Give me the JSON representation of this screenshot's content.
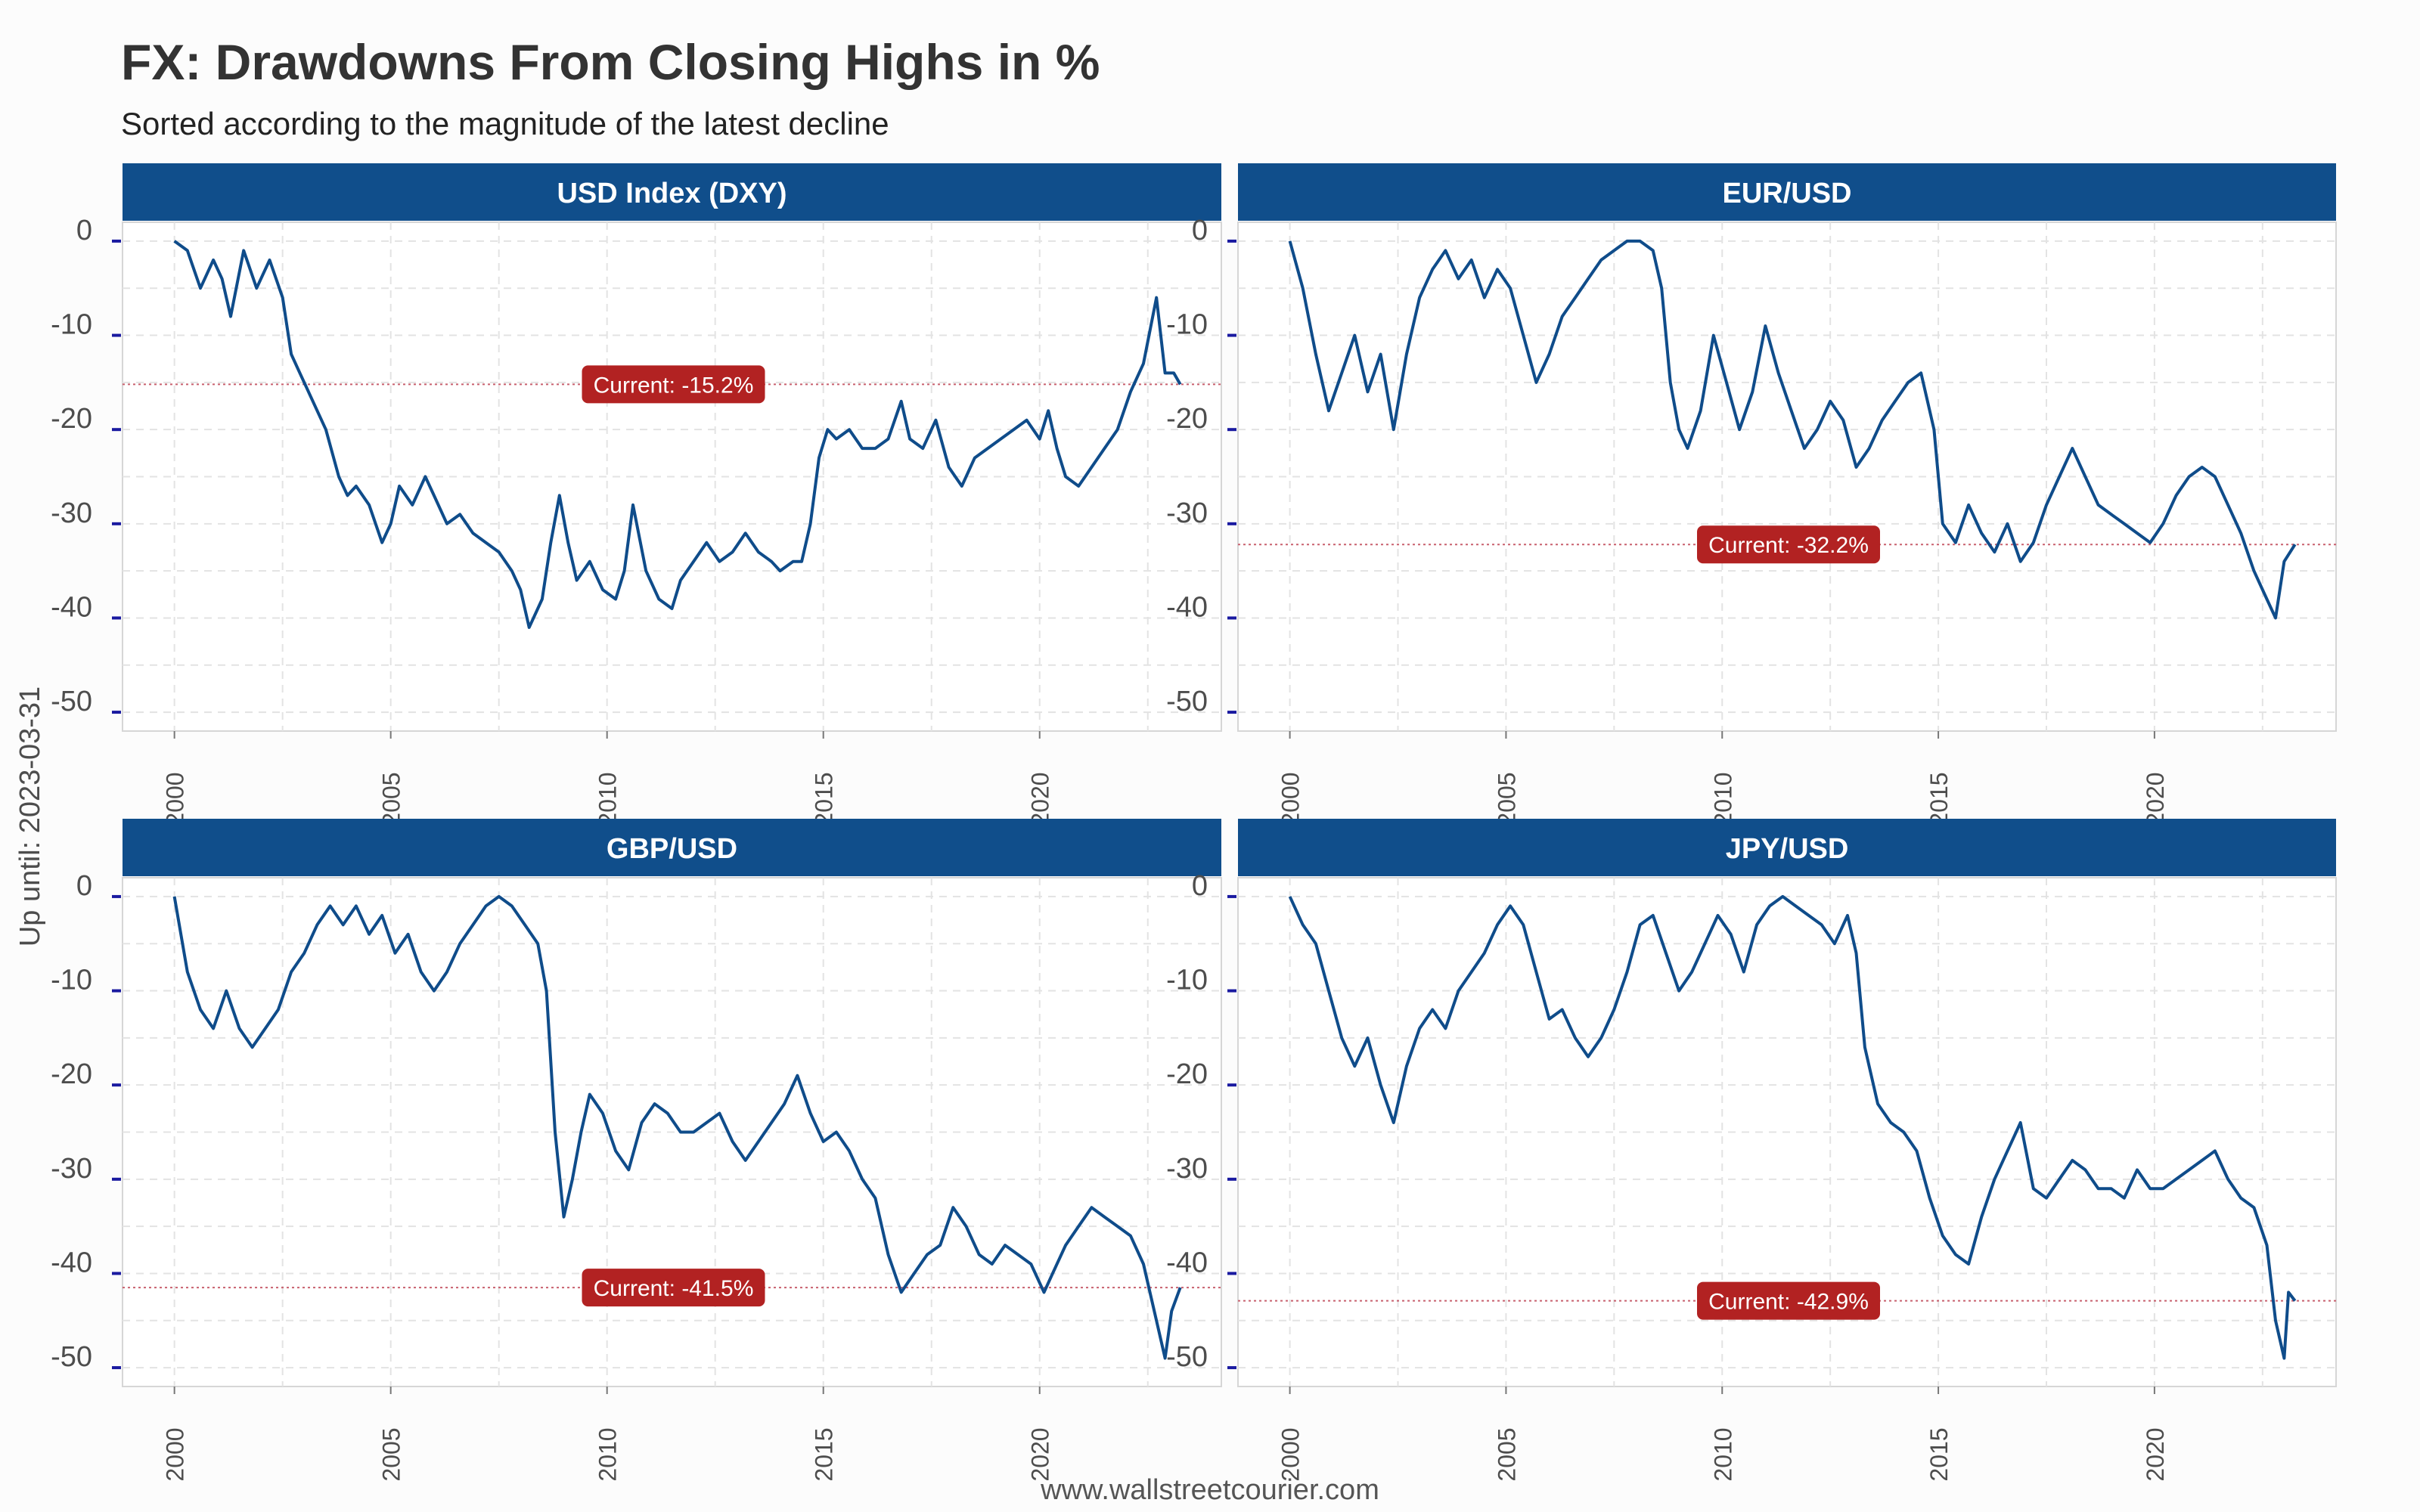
{
  "title": "FX: Drawdowns From Closing Highs in %",
  "subtitle": "Sorted according to the magnitude of the latest decline",
  "ylabel": "Up until: 2023-03-31",
  "footer": "www.wallstreetcourier.com",
  "colors": {
    "line": "#0f4c8a",
    "strip": "#104e8b",
    "badge": "#b22222",
    "current_line": "#c8606e",
    "grid": "#e3e3e3",
    "panel_border": "#d6d6d6",
    "ytick_mark": "#1a1aa0"
  },
  "chart_data": [
    {
      "type": "line",
      "title": "USD Index (DXY)",
      "current_label": "Current: -15.2%",
      "current": -15.2,
      "xlim": [
        1998.8,
        2024.2
      ],
      "ylim": [
        -52,
        2
      ],
      "xticks": [
        "2000",
        "2005",
        "2010",
        "2015",
        "2020"
      ],
      "yticks": [
        "0",
        "-10",
        "-20",
        "-30",
        "-40",
        "-50"
      ],
      "x": [
        2000.0,
        2000.3,
        2000.6,
        2000.9,
        2001.1,
        2001.3,
        2001.6,
        2001.9,
        2002.2,
        2002.5,
        2002.7,
        2002.9,
        2003.2,
        2003.5,
        2003.8,
        2004.0,
        2004.2,
        2004.5,
        2004.8,
        2005.0,
        2005.2,
        2005.5,
        2005.8,
        2006.0,
        2006.3,
        2006.6,
        2006.9,
        2007.2,
        2007.5,
        2007.8,
        2008.0,
        2008.2,
        2008.5,
        2008.7,
        2008.9,
        2009.1,
        2009.3,
        2009.6,
        2009.9,
        2010.2,
        2010.4,
        2010.6,
        2010.9,
        2011.2,
        2011.5,
        2011.7,
        2012.0,
        2012.3,
        2012.6,
        2012.9,
        2013.2,
        2013.5,
        2013.8,
        2014.0,
        2014.3,
        2014.5,
        2014.7,
        2014.9,
        2015.1,
        2015.3,
        2015.6,
        2015.9,
        2016.2,
        2016.5,
        2016.8,
        2017.0,
        2017.3,
        2017.6,
        2017.9,
        2018.2,
        2018.5,
        2018.8,
        2019.1,
        2019.4,
        2019.7,
        2020.0,
        2020.2,
        2020.4,
        2020.6,
        2020.9,
        2021.2,
        2021.5,
        2021.8,
        2022.1,
        2022.4,
        2022.7,
        2022.9,
        2023.1,
        2023.25
      ],
      "y": [
        0,
        -1,
        -5,
        -2,
        -4,
        -8,
        -1,
        -5,
        -2,
        -6,
        -12,
        -14,
        -17,
        -20,
        -25,
        -27,
        -26,
        -28,
        -32,
        -30,
        -26,
        -28,
        -25,
        -27,
        -30,
        -29,
        -31,
        -32,
        -33,
        -35,
        -37,
        -41,
        -38,
        -32,
        -27,
        -32,
        -36,
        -34,
        -37,
        -38,
        -35,
        -28,
        -35,
        -38,
        -39,
        -36,
        -34,
        -32,
        -34,
        -33,
        -31,
        -33,
        -34,
        -35,
        -34,
        -34,
        -30,
        -23,
        -20,
        -21,
        -20,
        -22,
        -22,
        -21,
        -17,
        -21,
        -22,
        -19,
        -24,
        -26,
        -23,
        -22,
        -21,
        -20,
        -19,
        -21,
        -18,
        -22,
        -25,
        -26,
        -24,
        -22,
        -20,
        -16,
        -13,
        -6,
        -14,
        -14,
        -15.2
      ]
    },
    {
      "type": "line",
      "title": "EUR/USD",
      "current_label": "Current: -32.2%",
      "current": -32.2,
      "xlim": [
        1998.8,
        2024.2
      ],
      "ylim": [
        -52,
        2
      ],
      "xticks": [
        "2000",
        "2005",
        "2010",
        "2015",
        "2020"
      ],
      "yticks": [
        "0",
        "-10",
        "-20",
        "-30",
        "-40",
        "-50"
      ],
      "x": [
        2000.0,
        2000.3,
        2000.6,
        2000.9,
        2001.2,
        2001.5,
        2001.8,
        2002.1,
        2002.4,
        2002.7,
        2003.0,
        2003.3,
        2003.6,
        2003.9,
        2004.2,
        2004.5,
        2004.8,
        2005.1,
        2005.4,
        2005.7,
        2006.0,
        2006.3,
        2006.6,
        2006.9,
        2007.2,
        2007.5,
        2007.8,
        2008.1,
        2008.4,
        2008.6,
        2008.8,
        2009.0,
        2009.2,
        2009.5,
        2009.8,
        2010.1,
        2010.4,
        2010.7,
        2011.0,
        2011.3,
        2011.6,
        2011.9,
        2012.2,
        2012.5,
        2012.8,
        2013.1,
        2013.4,
        2013.7,
        2014.0,
        2014.3,
        2014.6,
        2014.9,
        2015.1,
        2015.4,
        2015.7,
        2016.0,
        2016.3,
        2016.6,
        2016.9,
        2017.2,
        2017.5,
        2017.8,
        2018.1,
        2018.4,
        2018.7,
        2019.0,
        2019.3,
        2019.6,
        2019.9,
        2020.2,
        2020.5,
        2020.8,
        2021.1,
        2021.4,
        2021.7,
        2022.0,
        2022.3,
        2022.6,
        2022.8,
        2023.0,
        2023.25
      ],
      "y": [
        0,
        -5,
        -12,
        -18,
        -14,
        -10,
        -16,
        -12,
        -20,
        -12,
        -6,
        -3,
        -1,
        -4,
        -2,
        -6,
        -3,
        -5,
        -10,
        -15,
        -12,
        -8,
        -6,
        -4,
        -2,
        -1,
        0,
        0,
        -1,
        -5,
        -15,
        -20,
        -22,
        -18,
        -10,
        -15,
        -20,
        -16,
        -9,
        -14,
        -18,
        -22,
        -20,
        -17,
        -19,
        -24,
        -22,
        -19,
        -17,
        -15,
        -14,
        -20,
        -30,
        -32,
        -28,
        -31,
        -33,
        -30,
        -34,
        -32,
        -28,
        -25,
        -22,
        -25,
        -28,
        -29,
        -30,
        -31,
        -32,
        -30,
        -27,
        -25,
        -24,
        -25,
        -28,
        -31,
        -35,
        -38,
        -40,
        -34,
        -32.2
      ]
    },
    {
      "type": "line",
      "title": "GBP/USD",
      "current_label": "Current: -41.5%",
      "current": -41.5,
      "xlim": [
        1998.8,
        2024.2
      ],
      "ylim": [
        -52,
        2
      ],
      "xticks": [
        "2000",
        "2005",
        "2010",
        "2015",
        "2020"
      ],
      "yticks": [
        "0",
        "-10",
        "-20",
        "-30",
        "-40",
        "-50"
      ],
      "x": [
        2000.0,
        2000.3,
        2000.6,
        2000.9,
        2001.2,
        2001.5,
        2001.8,
        2002.1,
        2002.4,
        2002.7,
        2003.0,
        2003.3,
        2003.6,
        2003.9,
        2004.2,
        2004.5,
        2004.8,
        2005.1,
        2005.4,
        2005.7,
        2006.0,
        2006.3,
        2006.6,
        2006.9,
        2007.2,
        2007.5,
        2007.8,
        2008.1,
        2008.4,
        2008.6,
        2008.8,
        2009.0,
        2009.2,
        2009.4,
        2009.6,
        2009.9,
        2010.2,
        2010.5,
        2010.8,
        2011.1,
        2011.4,
        2011.7,
        2012.0,
        2012.3,
        2012.6,
        2012.9,
        2013.2,
        2013.5,
        2013.8,
        2014.1,
        2014.4,
        2014.7,
        2015.0,
        2015.3,
        2015.6,
        2015.9,
        2016.2,
        2016.5,
        2016.8,
        2017.1,
        2017.4,
        2017.7,
        2018.0,
        2018.3,
        2018.6,
        2018.9,
        2019.2,
        2019.5,
        2019.8,
        2020.1,
        2020.3,
        2020.6,
        2020.9,
        2021.2,
        2021.5,
        2021.8,
        2022.1,
        2022.4,
        2022.7,
        2022.9,
        2023.05,
        2023.25
      ],
      "y": [
        0,
        -8,
        -12,
        -14,
        -10,
        -14,
        -16,
        -14,
        -12,
        -8,
        -6,
        -3,
        -1,
        -3,
        -1,
        -4,
        -2,
        -6,
        -4,
        -8,
        -10,
        -8,
        -5,
        -3,
        -1,
        0,
        -1,
        -3,
        -5,
        -10,
        -25,
        -34,
        -30,
        -25,
        -21,
        -23,
        -27,
        -29,
        -24,
        -22,
        -23,
        -25,
        -25,
        -24,
        -23,
        -26,
        -28,
        -26,
        -24,
        -22,
        -19,
        -23,
        -26,
        -25,
        -27,
        -30,
        -32,
        -38,
        -42,
        -40,
        -38,
        -37,
        -33,
        -35,
        -38,
        -39,
        -37,
        -38,
        -39,
        -42,
        -40,
        -37,
        -35,
        -33,
        -34,
        -35,
        -36,
        -39,
        -45,
        -49,
        -44,
        -41.5
      ]
    },
    {
      "type": "line",
      "title": "JPY/USD",
      "current_label": "Current: -42.9%",
      "current": -42.9,
      "xlim": [
        1998.8,
        2024.2
      ],
      "ylim": [
        -52,
        2
      ],
      "xticks": [
        "2000",
        "2005",
        "2010",
        "2015",
        "2020"
      ],
      "yticks": [
        "0",
        "-10",
        "-20",
        "-30",
        "-40",
        "-50"
      ],
      "x": [
        2000.0,
        2000.3,
        2000.6,
        2000.9,
        2001.2,
        2001.5,
        2001.8,
        2002.1,
        2002.4,
        2002.7,
        2003.0,
        2003.3,
        2003.6,
        2003.9,
        2004.2,
        2004.5,
        2004.8,
        2005.1,
        2005.4,
        2005.7,
        2006.0,
        2006.3,
        2006.6,
        2006.9,
        2007.2,
        2007.5,
        2007.8,
        2008.1,
        2008.4,
        2008.7,
        2009.0,
        2009.3,
        2009.6,
        2009.9,
        2010.2,
        2010.5,
        2010.8,
        2011.1,
        2011.4,
        2011.7,
        2012.0,
        2012.3,
        2012.6,
        2012.9,
        2013.1,
        2013.3,
        2013.6,
        2013.9,
        2014.2,
        2014.5,
        2014.8,
        2015.1,
        2015.4,
        2015.7,
        2016.0,
        2016.3,
        2016.6,
        2016.9,
        2017.2,
        2017.5,
        2017.8,
        2018.1,
        2018.4,
        2018.7,
        2019.0,
        2019.3,
        2019.6,
        2019.9,
        2020.2,
        2020.5,
        2020.8,
        2021.1,
        2021.4,
        2021.7,
        2022.0,
        2022.3,
        2022.6,
        2022.8,
        2023.0,
        2023.1,
        2023.25
      ],
      "y": [
        0,
        -3,
        -5,
        -10,
        -15,
        -18,
        -15,
        -20,
        -24,
        -18,
        -14,
        -12,
        -14,
        -10,
        -8,
        -6,
        -3,
        -1,
        -3,
        -8,
        -13,
        -12,
        -15,
        -17,
        -15,
        -12,
        -8,
        -3,
        -2,
        -6,
        -10,
        -8,
        -5,
        -2,
        -4,
        -8,
        -3,
        -1,
        0,
        -1,
        -2,
        -3,
        -5,
        -2,
        -6,
        -16,
        -22,
        -24,
        -25,
        -27,
        -32,
        -36,
        -38,
        -39,
        -34,
        -30,
        -27,
        -24,
        -31,
        -32,
        -30,
        -28,
        -29,
        -31,
        -31,
        -32,
        -29,
        -31,
        -31,
        -30,
        -29,
        -28,
        -27,
        -30,
        -32,
        -33,
        -37,
        -45,
        -49,
        -42,
        -42.9
      ]
    }
  ]
}
